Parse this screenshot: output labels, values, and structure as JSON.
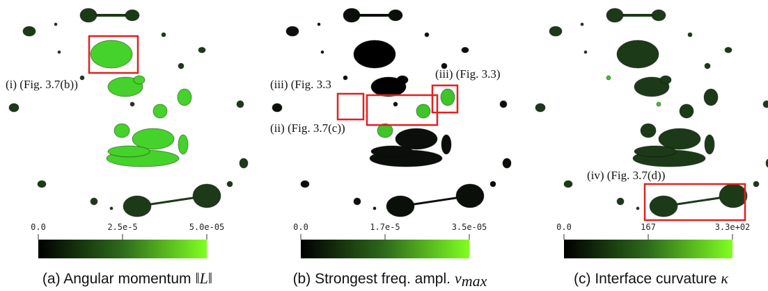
{
  "panels": [
    {
      "annotations": [
        "(i) (Fig. 3.7(b))"
      ],
      "colorbar": {
        "ticks": [
          "0.0",
          "2.5e-5",
          "5.0e-05"
        ]
      },
      "caption": "(a) Angular momentum",
      "symbol": "‖L‖"
    },
    {
      "annotations": [
        "(iii) (Fig. 3.3",
        "(iii) (Fig. 3.3)",
        "(ii) (Fig. 3.7(c))"
      ],
      "colorbar": {
        "ticks": [
          "0.0",
          "1.7e-5",
          "3.5e-05"
        ]
      },
      "caption": "(b) Strongest freq. ampl.",
      "symbol": "ν",
      "subscript": "max"
    },
    {
      "annotations": [
        "(iv) (Fig. 3.7(d))"
      ],
      "colorbar": {
        "ticks": [
          "0.0",
          "167",
          "3.3e+02"
        ]
      },
      "caption": "(c) Interface curvature",
      "symbol": "κ"
    }
  ]
}
